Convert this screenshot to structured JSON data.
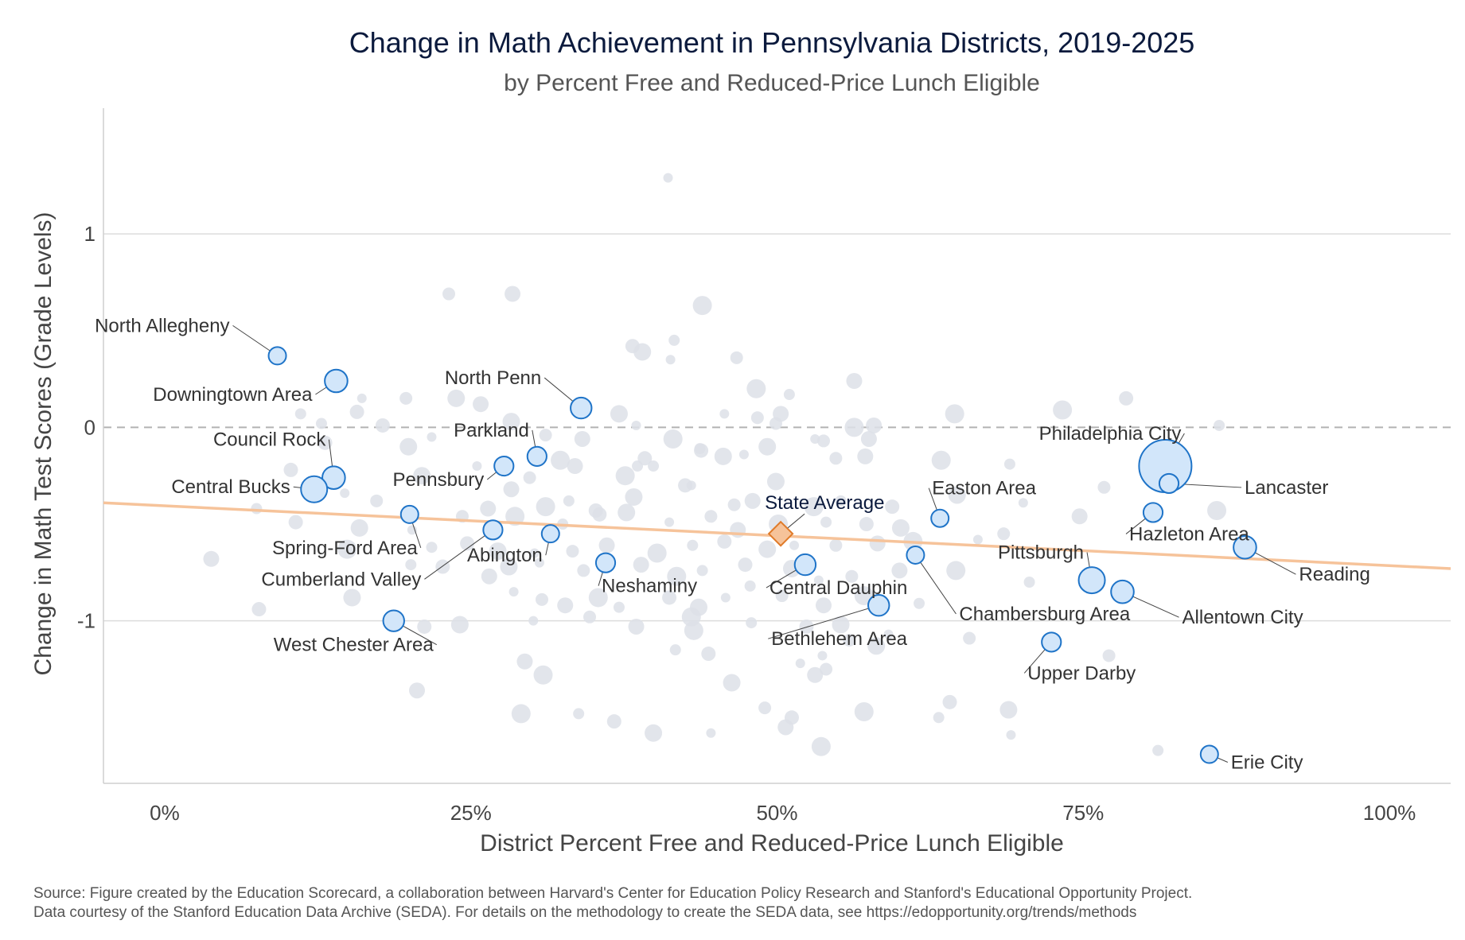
{
  "chart_data": {
    "type": "scatter",
    "title": "Change in Math Achievement in Pennsylvania Districts, 2019-2025",
    "subtitle": "by Percent Free and Reduced-Price Lunch Eligible",
    "xlabel": "District Percent Free and Reduced-Price Lunch Eligible",
    "ylabel": "Change in Math Test Scores (Grade Levels)",
    "xlim": [
      -0.05,
      1.05
    ],
    "ylim": [
      -1.84,
      1.65
    ],
    "x_ticks": [
      {
        "value": 0,
        "label": "0%"
      },
      {
        "value": 0.25,
        "label": "25%"
      },
      {
        "value": 0.5,
        "label": "50%"
      },
      {
        "value": 0.75,
        "label": "75%"
      },
      {
        "value": 1,
        "label": "100%"
      }
    ],
    "y_ticks": [
      {
        "value": 1,
        "label": "1"
      },
      {
        "value": 0,
        "label": "0"
      },
      {
        "value": -1,
        "label": "-1"
      }
    ],
    "grid": "horizontal",
    "zero_line": "dashed",
    "colors": {
      "background_points": "#dde1e7",
      "highlight_fill": "#d2e6fa",
      "highlight_stroke": "#1f74c8",
      "state_fill": "#f6c39a",
      "state_stroke": "#e07a28",
      "trend_line": "#f6c39a"
    },
    "trend_line": {
      "x": [
        -0.05,
        1.05
      ],
      "y": [
        -0.39,
        -0.73
      ]
    },
    "state_average": {
      "label": "State Average",
      "x": 0.503,
      "y": -0.55
    },
    "highlighted": [
      {
        "label": "North Allegheny",
        "x": 0.092,
        "y": 0.37,
        "size": 1.0
      },
      {
        "label": "Downingtown Area",
        "x": 0.14,
        "y": 0.24,
        "size": 1.3
      },
      {
        "label": "Council Rock",
        "x": 0.138,
        "y": -0.26,
        "size": 1.3
      },
      {
        "label": "Central Bucks",
        "x": 0.122,
        "y": -0.32,
        "size": 1.5
      },
      {
        "label": "Spring-Ford Area",
        "x": 0.2,
        "y": -0.45,
        "size": 1.0
      },
      {
        "label": "West Chester Area",
        "x": 0.187,
        "y": -1.0,
        "size": 1.2
      },
      {
        "label": "Cumberland Valley",
        "x": 0.268,
        "y": -0.53,
        "size": 1.1
      },
      {
        "label": "Pennsbury",
        "x": 0.277,
        "y": -0.2,
        "size": 1.1
      },
      {
        "label": "Parkland",
        "x": 0.304,
        "y": -0.15,
        "size": 1.1
      },
      {
        "label": "Abington",
        "x": 0.315,
        "y": -0.55,
        "size": 1.0
      },
      {
        "label": "North Penn",
        "x": 0.34,
        "y": 0.1,
        "size": 1.2
      },
      {
        "label": "Neshaminy",
        "x": 0.36,
        "y": -0.7,
        "size": 1.1
      },
      {
        "label": "Central Dauphin",
        "x": 0.523,
        "y": -0.71,
        "size": 1.2
      },
      {
        "label": "Bethlehem Area",
        "x": 0.583,
        "y": -0.92,
        "size": 1.2
      },
      {
        "label": "Easton Area",
        "x": 0.633,
        "y": -0.47,
        "size": 1.0
      },
      {
        "label": "Chambersburg Area",
        "x": 0.613,
        "y": -0.66,
        "size": 1.0
      },
      {
        "label": "Upper Darby",
        "x": 0.724,
        "y": -1.11,
        "size": 1.1
      },
      {
        "label": "Pittsburgh",
        "x": 0.757,
        "y": -0.79,
        "size": 1.5
      },
      {
        "label": "Allentown City",
        "x": 0.782,
        "y": -0.85,
        "size": 1.3
      },
      {
        "label": "Philadelphia City",
        "x": 0.817,
        "y": -0.2,
        "size": 3.0
      },
      {
        "label": "Lancaster",
        "x": 0.82,
        "y": -0.29,
        "size": 1.1
      },
      {
        "label": "Hazleton Area",
        "x": 0.807,
        "y": -0.44,
        "size": 1.1
      },
      {
        "label": "Reading",
        "x": 0.882,
        "y": -0.62,
        "size": 1.3
      },
      {
        "label": "Erie City",
        "x": 0.853,
        "y": -1.69,
        "size": 1.0
      }
    ],
    "background_points": [
      [
        0.411,
        1.29
      ],
      [
        0.232,
        0.69
      ],
      [
        0.284,
        0.69
      ],
      [
        0.439,
        0.63
      ],
      [
        0.416,
        0.45
      ],
      [
        0.382,
        0.42
      ],
      [
        0.39,
        0.39
      ],
      [
        0.413,
        0.35
      ],
      [
        0.467,
        0.36
      ],
      [
        0.563,
        0.24
      ],
      [
        0.483,
        0.2
      ],
      [
        0.51,
        0.17
      ],
      [
        0.785,
        0.15
      ],
      [
        0.238,
        0.15
      ],
      [
        0.161,
        0.15
      ],
      [
        0.197,
        0.15
      ],
      [
        0.258,
        0.12
      ],
      [
        0.733,
        0.09
      ],
      [
        0.111,
        0.07
      ],
      [
        0.157,
        0.08
      ],
      [
        0.371,
        0.07
      ],
      [
        0.457,
        0.07
      ],
      [
        0.484,
        0.05
      ],
      [
        0.503,
        0.07
      ],
      [
        0.645,
        0.07
      ],
      [
        0.128,
        0.02
      ],
      [
        0.178,
        0.01
      ],
      [
        0.283,
        0.03
      ],
      [
        0.385,
        0.01
      ],
      [
        0.499,
        0.02
      ],
      [
        0.579,
        0.01
      ],
      [
        0.563,
        0.0
      ],
      [
        0.861,
        0.01
      ],
      [
        0.131,
        -0.08
      ],
      [
        0.199,
        -0.1
      ],
      [
        0.218,
        -0.05
      ],
      [
        0.311,
        -0.04
      ],
      [
        0.341,
        -0.06
      ],
      [
        0.415,
        -0.06
      ],
      [
        0.437,
        -0.11
      ],
      [
        0.438,
        -0.12
      ],
      [
        0.492,
        -0.1
      ],
      [
        0.531,
        -0.06
      ],
      [
        0.538,
        -0.07
      ],
      [
        0.575,
        -0.06
      ],
      [
        0.323,
        -0.17
      ],
      [
        0.386,
        -0.2
      ],
      [
        0.392,
        -0.16
      ],
      [
        0.456,
        -0.15
      ],
      [
        0.473,
        -0.14
      ],
      [
        0.548,
        -0.16
      ],
      [
        0.572,
        -0.15
      ],
      [
        0.634,
        -0.17
      ],
      [
        0.69,
        -0.19
      ],
      [
        0.103,
        -0.22
      ],
      [
        0.21,
        -0.25
      ],
      [
        0.255,
        -0.2
      ],
      [
        0.298,
        -0.26
      ],
      [
        0.335,
        -0.2
      ],
      [
        0.376,
        -0.25
      ],
      [
        0.399,
        -0.2
      ],
      [
        0.425,
        -0.3
      ],
      [
        0.499,
        -0.28
      ],
      [
        0.147,
        -0.34
      ],
      [
        0.173,
        -0.38
      ],
      [
        0.283,
        -0.32
      ],
      [
        0.311,
        -0.41
      ],
      [
        0.33,
        -0.38
      ],
      [
        0.355,
        -0.45
      ],
      [
        0.383,
        -0.36
      ],
      [
        0.43,
        -0.3
      ],
      [
        0.465,
        -0.4
      ],
      [
        0.48,
        -0.38
      ],
      [
        0.53,
        -0.41
      ],
      [
        0.552,
        -0.38
      ],
      [
        0.594,
        -0.41
      ],
      [
        0.647,
        -0.35
      ],
      [
        0.701,
        -0.39
      ],
      [
        0.767,
        -0.31
      ],
      [
        0.747,
        -0.46
      ],
      [
        0.859,
        -0.43
      ],
      [
        0.075,
        -0.42
      ],
      [
        0.107,
        -0.49
      ],
      [
        0.159,
        -0.52
      ],
      [
        0.202,
        -0.53
      ],
      [
        0.243,
        -0.46
      ],
      [
        0.264,
        -0.42
      ],
      [
        0.286,
        -0.46
      ],
      [
        0.325,
        -0.5
      ],
      [
        0.352,
        -0.43
      ],
      [
        0.377,
        -0.44
      ],
      [
        0.412,
        -0.49
      ],
      [
        0.446,
        -0.46
      ],
      [
        0.468,
        -0.53
      ],
      [
        0.501,
        -0.5
      ],
      [
        0.54,
        -0.49
      ],
      [
        0.573,
        -0.5
      ],
      [
        0.601,
        -0.52
      ],
      [
        0.664,
        -0.58
      ],
      [
        0.685,
        -0.55
      ],
      [
        0.038,
        -0.68
      ],
      [
        0.149,
        -0.63
      ],
      [
        0.218,
        -0.62
      ],
      [
        0.247,
        -0.6
      ],
      [
        0.272,
        -0.64
      ],
      [
        0.302,
        -0.65
      ],
      [
        0.333,
        -0.64
      ],
      [
        0.361,
        -0.61
      ],
      [
        0.402,
        -0.65
      ],
      [
        0.431,
        -0.61
      ],
      [
        0.457,
        -0.59
      ],
      [
        0.492,
        -0.63
      ],
      [
        0.514,
        -0.61
      ],
      [
        0.548,
        -0.61
      ],
      [
        0.582,
        -0.6
      ],
      [
        0.611,
        -0.59
      ],
      [
        0.201,
        -0.71
      ],
      [
        0.227,
        -0.72
      ],
      [
        0.281,
        -0.72
      ],
      [
        0.306,
        -0.7
      ],
      [
        0.342,
        -0.74
      ],
      [
        0.389,
        -0.71
      ],
      [
        0.418,
        -0.77
      ],
      [
        0.439,
        -0.74
      ],
      [
        0.474,
        -0.71
      ],
      [
        0.512,
        -0.73
      ],
      [
        0.534,
        -0.79
      ],
      [
        0.561,
        -0.77
      ],
      [
        0.6,
        -0.74
      ],
      [
        0.646,
        -0.74
      ],
      [
        0.706,
        -0.8
      ],
      [
        0.077,
        -0.94
      ],
      [
        0.153,
        -0.88
      ],
      [
        0.285,
        -0.85
      ],
      [
        0.308,
        -0.89
      ],
      [
        0.327,
        -0.92
      ],
      [
        0.354,
        -0.88
      ],
      [
        0.371,
        -0.93
      ],
      [
        0.412,
        -0.88
      ],
      [
        0.436,
        -0.93
      ],
      [
        0.458,
        -0.88
      ],
      [
        0.504,
        -0.87
      ],
      [
        0.538,
        -0.92
      ],
      [
        0.571,
        -0.87
      ],
      [
        0.616,
        -0.91
      ],
      [
        0.212,
        -1.03
      ],
      [
        0.241,
        -1.02
      ],
      [
        0.301,
        -1.0
      ],
      [
        0.347,
        -0.98
      ],
      [
        0.385,
        -1.03
      ],
      [
        0.432,
        -1.05
      ],
      [
        0.479,
        -1.01
      ],
      [
        0.524,
        -1.03
      ],
      [
        0.552,
        -1.02
      ],
      [
        0.591,
        -1.07
      ],
      [
        0.657,
        -1.09
      ],
      [
        0.294,
        -1.21
      ],
      [
        0.309,
        -1.28
      ],
      [
        0.417,
        -1.15
      ],
      [
        0.444,
        -1.17
      ],
      [
        0.463,
        -1.32
      ],
      [
        0.519,
        -1.22
      ],
      [
        0.54,
        -1.25
      ],
      [
        0.531,
        -1.28
      ],
      [
        0.571,
        -1.47
      ],
      [
        0.632,
        -1.5
      ],
      [
        0.641,
        -1.42
      ],
      [
        0.689,
        -1.46
      ],
      [
        0.691,
        -1.59
      ],
      [
        0.771,
        -1.18
      ],
      [
        0.206,
        -1.36
      ],
      [
        0.291,
        -1.48
      ],
      [
        0.338,
        -1.48
      ],
      [
        0.367,
        -1.52
      ],
      [
        0.399,
        -1.58
      ],
      [
        0.446,
        -1.58
      ],
      [
        0.49,
        -1.45
      ],
      [
        0.507,
        -1.55
      ],
      [
        0.536,
        -1.65
      ],
      [
        0.811,
        -1.67
      ],
      [
        0.512,
        -1.5
      ],
      [
        0.581,
        -1.13
      ],
      [
        0.537,
        -1.18
      ],
      [
        0.559,
        -1.1
      ],
      [
        0.265,
        -0.77
      ],
      [
        0.43,
        -0.98
      ],
      [
        0.478,
        -0.82
      ]
    ]
  },
  "footer": {
    "source_line1": "Source: Figure created by the Education Scorecard, a collaboration between Harvard's Center for Education Policy Research and Stanford's Educational Opportunity Project.",
    "source_line2": "Data courtesy of the Stanford Education Data Archive (SEDA). For details on the methodology to create the SEDA data, see https://edopportunity.org/trends/methods"
  }
}
